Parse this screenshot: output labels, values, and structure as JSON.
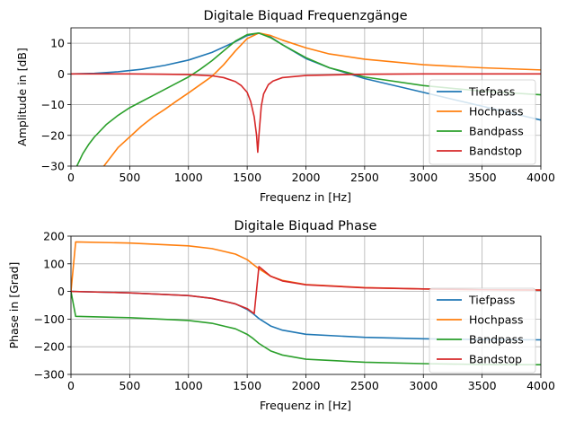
{
  "chart_data": [
    {
      "type": "line",
      "title": "Digitale Biquad Frequenzgänge",
      "xlabel": "Frequenz in [Hz]",
      "ylabel": "Amplitude in [dB]",
      "xlim": [
        0,
        4000
      ],
      "ylim": [
        -30,
        15
      ],
      "xticks": [
        0,
        500,
        1000,
        1500,
        2000,
        2500,
        3000,
        3500,
        4000
      ],
      "yticks": [
        -30,
        -20,
        -10,
        0,
        10
      ],
      "grid": true,
      "legend_position": "lower right",
      "series": [
        {
          "name": "Tiefpass",
          "color": "#1f77b4",
          "x": [
            0,
            200,
            400,
            600,
            800,
            1000,
            1200,
            1400,
            1500,
            1600,
            1700,
            1800,
            2000,
            2200,
            2500,
            3000,
            3500,
            4000
          ],
          "y": [
            0,
            0.2,
            0.7,
            1.5,
            2.8,
            4.5,
            7,
            10.5,
            12.5,
            13.3,
            12,
            9.5,
            5,
            2,
            -1.5,
            -6,
            -10.5,
            -15
          ]
        },
        {
          "name": "Hochpass",
          "color": "#ff7f0e",
          "x": [
            280,
            400,
            500,
            600,
            700,
            800,
            900,
            1000,
            1100,
            1200,
            1300,
            1400,
            1500,
            1600,
            1700,
            1800,
            2000,
            2200,
            2500,
            3000,
            3500,
            4000
          ],
          "y": [
            -30,
            -24,
            -20.5,
            -17,
            -14,
            -11.5,
            -8.8,
            -6.2,
            -3.5,
            -0.8,
            3,
            7.5,
            11.5,
            13.3,
            12.5,
            11,
            8.5,
            6.5,
            4.8,
            3,
            2,
            1.3
          ]
        },
        {
          "name": "Bandpass",
          "color": "#2ca02c",
          "x": [
            50,
            100,
            150,
            200,
            300,
            400,
            500,
            600,
            700,
            800,
            900,
            1000,
            1100,
            1200,
            1300,
            1400,
            1500,
            1600,
            1700,
            1800,
            2000,
            2200,
            2500,
            3000,
            3500,
            4000
          ],
          "y": [
            -30,
            -26,
            -23,
            -20.5,
            -16.5,
            -13.5,
            -11,
            -9,
            -7,
            -5,
            -3,
            -1,
            1.5,
            4.3,
            7.5,
            10.7,
            12.8,
            13.3,
            11.8,
            9.5,
            5.3,
            2,
            -1,
            -3.8,
            -5.6,
            -6.8
          ]
        },
        {
          "name": "Bandstop",
          "color": "#d62728",
          "x": [
            0,
            500,
            800,
            1000,
            1200,
            1300,
            1400,
            1450,
            1500,
            1530,
            1560,
            1580,
            1590,
            1600,
            1620,
            1640,
            1680,
            1720,
            1800,
            2000,
            2500,
            3000,
            3500,
            4000
          ],
          "y": [
            0,
            0,
            -0.1,
            -0.2,
            -0.6,
            -1.2,
            -2.5,
            -3.8,
            -6,
            -9,
            -14,
            -20,
            -25.5,
            -20,
            -10.5,
            -6.5,
            -3.5,
            -2.3,
            -1.2,
            -0.5,
            -0.1,
            0,
            0,
            0
          ]
        }
      ]
    },
    {
      "type": "line",
      "title": "Digitale Biquad Phase",
      "xlabel": "Frequenz in [Hz]",
      "ylabel": "Phase in [Grad]",
      "xlim": [
        0,
        4000
      ],
      "ylim": [
        -300,
        200
      ],
      "xticks": [
        0,
        500,
        1000,
        1500,
        2000,
        2500,
        3000,
        3500,
        4000
      ],
      "yticks": [
        -300,
        -200,
        -100,
        0,
        100,
        200
      ],
      "grid": true,
      "legend_position": "lower right",
      "series": [
        {
          "name": "Tiefpass",
          "color": "#1f77b4",
          "x": [
            0,
            500,
            1000,
            1200,
            1400,
            1500,
            1550,
            1600,
            1700,
            1800,
            2000,
            2500,
            3000,
            3500,
            4000
          ],
          "y": [
            0,
            -5,
            -15,
            -25,
            -45,
            -65,
            -80,
            -98,
            -125,
            -140,
            -155,
            -166,
            -171,
            -174,
            -175
          ]
        },
        {
          "name": "Hochpass",
          "color": "#ff7f0e",
          "x": [
            0,
            40,
            500,
            1000,
            1200,
            1400,
            1500,
            1550,
            1600,
            1700,
            1800,
            2000,
            2500,
            3000,
            3500,
            4000
          ],
          "y": [
            0,
            179,
            175,
            165,
            155,
            135,
            115,
            98,
            82,
            55,
            40,
            25,
            14,
            9,
            6,
            5
          ]
        },
        {
          "name": "Bandpass",
          "color": "#2ca02c",
          "x": [
            0,
            40,
            500,
            1000,
            1200,
            1400,
            1500,
            1550,
            1600,
            1700,
            1800,
            2000,
            2500,
            3000,
            3500,
            4000
          ],
          "y": [
            0,
            -90,
            -95,
            -105,
            -115,
            -135,
            -155,
            -170,
            -188,
            -215,
            -230,
            -245,
            -256,
            -261,
            -264,
            -265
          ]
        },
        {
          "name": "Bandstop",
          "color": "#d62728",
          "x": [
            0,
            500,
            1000,
            1200,
            1400,
            1500,
            1560,
            1600,
            1700,
            1800,
            2000,
            2500,
            3000,
            3500,
            4000
          ],
          "y": [
            0,
            -5,
            -15,
            -25,
            -45,
            -62,
            -80,
            90,
            55,
            38,
            24,
            13,
            9,
            6,
            5
          ]
        }
      ]
    }
  ]
}
